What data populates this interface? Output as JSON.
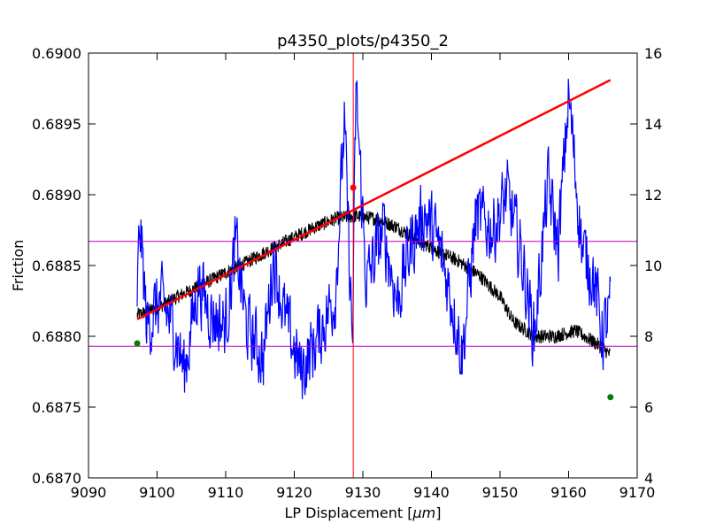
{
  "chart_data": {
    "type": "line",
    "title": "p4350_plots/p4350_2",
    "xlabel_text": "LP Displacement [",
    "xlabel_unit": "μm",
    "xlabel_close": "]",
    "ylabel": "Friction",
    "xlim": [
      9090,
      9170
    ],
    "ylim_left": [
      0.687,
      0.69
    ],
    "ylim_right": [
      4,
      16
    ],
    "x_ticks": [
      "9090",
      "9100",
      "9110",
      "9120",
      "9130",
      "9140",
      "9150",
      "9160",
      "9170"
    ],
    "y_left_ticks": [
      "0.6870",
      "0.6875",
      "0.6880",
      "0.6885",
      "0.6890",
      "0.6895",
      "0.6900"
    ],
    "y_right_ticks": [
      "4",
      "6",
      "8",
      "10",
      "12",
      "14",
      "16"
    ],
    "grid": false,
    "legend": "none",
    "colors": {
      "friction": "#000000",
      "right_axis_series": "#0000ff",
      "fit": "#ff0000",
      "vline": "#ff0000",
      "hlines": "#bf00bf",
      "markers_green": "#008000",
      "marker_red": "#ff0000"
    },
    "series": [
      {
        "axis": "left",
        "style": "noisy-line",
        "color": "#000000",
        "trend": [
          [
            9097.1,
            0.68815
          ],
          [
            9100,
            0.6882
          ],
          [
            9103,
            0.68828
          ],
          [
            9106,
            0.68835
          ],
          [
            9110,
            0.68845
          ],
          [
            9113,
            0.68852
          ],
          [
            9116,
            0.6886
          ],
          [
            9120,
            0.6887
          ],
          [
            9123,
            0.68877
          ],
          [
            9126,
            0.68883
          ],
          [
            9129,
            0.68885
          ],
          [
            9132,
            0.68883
          ],
          [
            9135,
            0.68877
          ],
          [
            9138,
            0.68868
          ],
          [
            9141,
            0.6886
          ],
          [
            9144,
            0.68853
          ],
          [
            9147,
            0.68843
          ],
          [
            9150,
            0.68828
          ],
          [
            9152,
            0.6881
          ],
          [
            9155,
            0.688
          ],
          [
            9158,
            0.688
          ],
          [
            9161,
            0.68804
          ],
          [
            9164,
            0.68795
          ],
          [
            9166.1,
            0.68787
          ]
        ],
        "noise_amplitude": 5e-05
      },
      {
        "axis": "right",
        "style": "noisy-line",
        "color": "#0000ff",
        "trend": [
          [
            9097.1,
            9.2
          ],
          [
            9097.5,
            11.2
          ],
          [
            9098.5,
            8.3
          ],
          [
            9100.5,
            9.0
          ],
          [
            9102.5,
            8.2
          ],
          [
            9104,
            7.0
          ],
          [
            9106,
            9.5
          ],
          [
            9108,
            8.6
          ],
          [
            9110,
            8.3
          ],
          [
            9111.5,
            10.6
          ],
          [
            9113,
            8.3
          ],
          [
            9115.5,
            7.4
          ],
          [
            9117,
            10.3
          ],
          [
            9118.5,
            8.6
          ],
          [
            9121,
            7.0
          ],
          [
            9123.5,
            8.0
          ],
          [
            9126,
            9.2
          ],
          [
            9127.3,
            14.0
          ],
          [
            9128.5,
            7.7
          ],
          [
            9129,
            15.0
          ],
          [
            9130.5,
            9.5
          ],
          [
            9133,
            11.0
          ],
          [
            9135,
            9.0
          ],
          [
            9137,
            10.6
          ],
          [
            9139,
            11.5
          ],
          [
            9141,
            10.6
          ],
          [
            9143,
            9.0
          ],
          [
            9144.5,
            7.5
          ],
          [
            9146.5,
            11.4
          ],
          [
            9149,
            11.0
          ],
          [
            9151,
            12.0
          ],
          [
            9153,
            10.4
          ],
          [
            9155,
            8.0
          ],
          [
            9157,
            12.3
          ],
          [
            9158.5,
            10.5
          ],
          [
            9160,
            14.8
          ],
          [
            9162,
            10.4
          ],
          [
            9163.5,
            9.8
          ],
          [
            9165,
            8.0
          ],
          [
            9166.1,
            8.8
          ]
        ],
        "noise_amplitude": 0.9
      },
      {
        "axis": "left",
        "style": "straight-line",
        "color": "#ff0000",
        "points": [
          [
            9097.1,
            0.68812
          ],
          [
            9166.1,
            0.68981
          ]
        ]
      }
    ],
    "reference_lines": {
      "vertical_x": 9128.6,
      "horizontal_left": [
        0.68867,
        0.68793
      ]
    },
    "markers": [
      {
        "color": "#008000",
        "axis": "left",
        "x": 9097.1,
        "y": 0.68795
      },
      {
        "color": "#008000",
        "axis": "left",
        "x": 9166.1,
        "y": 0.68757
      },
      {
        "color": "#ff0000",
        "axis": "left",
        "x": 9128.6,
        "y": 0.68905
      }
    ]
  }
}
